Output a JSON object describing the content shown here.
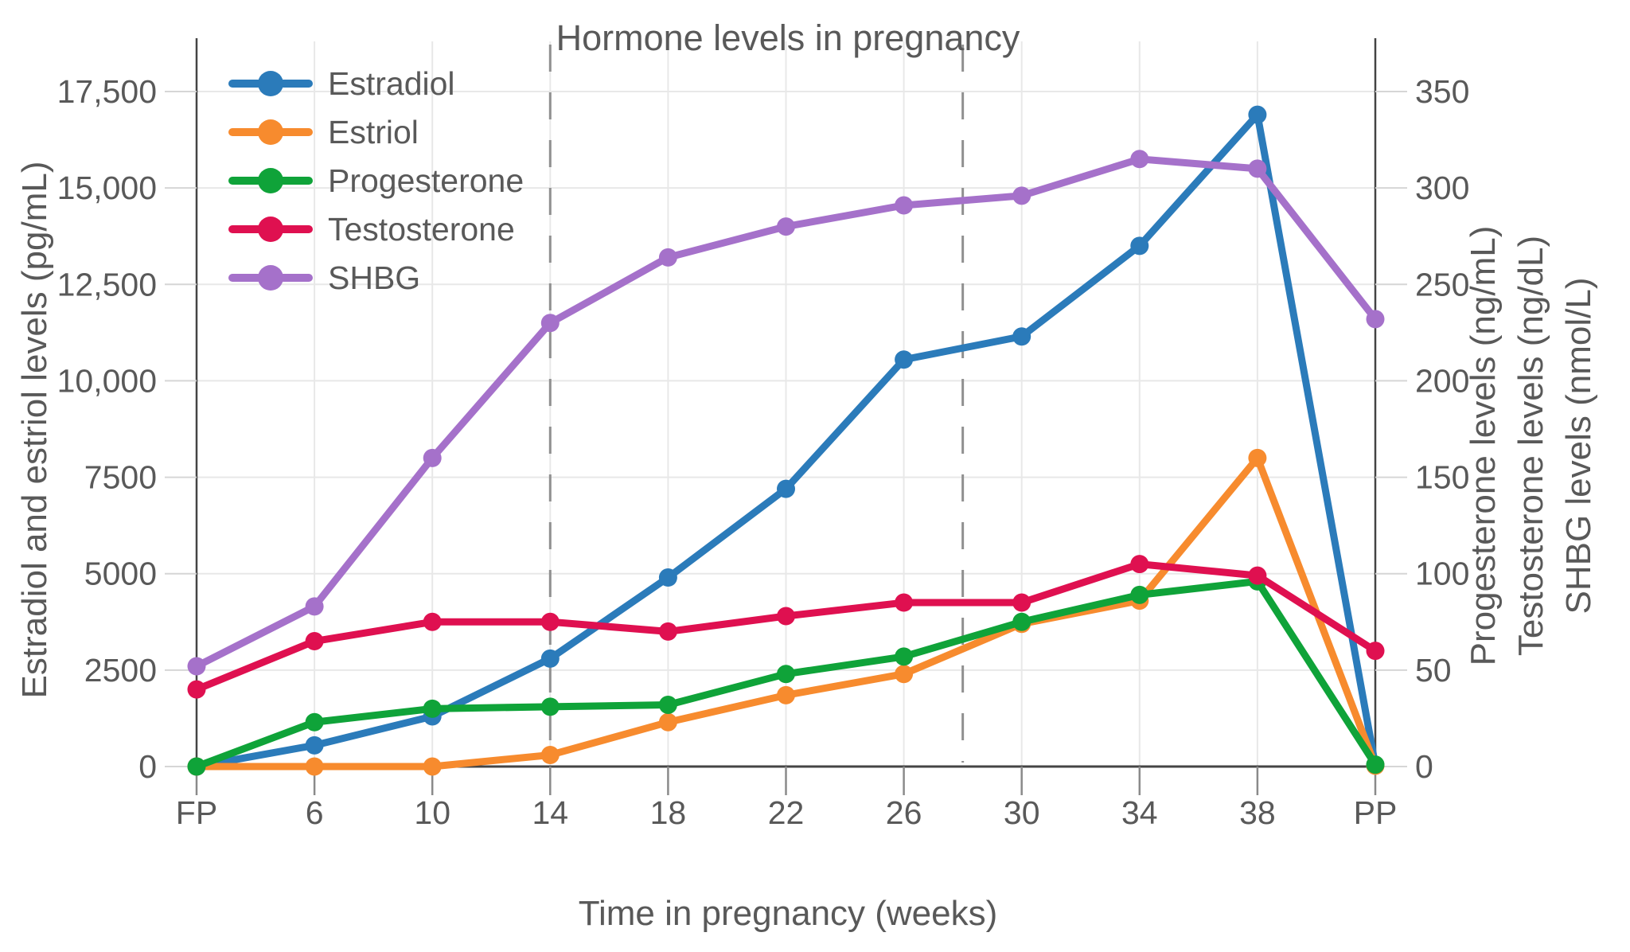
{
  "title": "Hormone levels in pregnancy",
  "x_axis": {
    "title": "Time in pregnancy (weeks)",
    "tick_labels": [
      "FP",
      "6",
      "10",
      "14",
      "18",
      "22",
      "26",
      "30",
      "34",
      "38",
      "PP"
    ]
  },
  "left_axis": {
    "title": "Estradiol and estriol levels (pg/mL)",
    "tick_labels": [
      "0",
      "2500",
      "5000",
      "7500",
      "10,000",
      "12,500",
      "15,000",
      "17,500"
    ],
    "tick_values": [
      0,
      2500,
      5000,
      7500,
      10000,
      12500,
      15000,
      17500
    ],
    "range": [
      0,
      17500
    ]
  },
  "right_axis": {
    "titles": [
      "Progesterone levels (ng/mL)",
      "Testosterone levels (ng/dL)",
      "SHBG levels (nmol/L)"
    ],
    "tick_labels": [
      "0",
      "50",
      "100",
      "150",
      "200",
      "250",
      "300",
      "350"
    ],
    "tick_values": [
      0,
      50,
      100,
      150,
      200,
      250,
      300,
      350
    ],
    "range": [
      0,
      350
    ]
  },
  "legend": {
    "items": [
      "Estradiol",
      "Estriol",
      "Progesterone",
      "Testosterone",
      "SHBG"
    ]
  },
  "colors": {
    "estradiol": "#2b7bba",
    "estriol": "#f78b2e",
    "progesterone": "#0fa339",
    "testosterone": "#df1050",
    "shbg": "#a571ca",
    "text": "#595959",
    "grid": "#e8e8e8",
    "axis_line": "#444444",
    "tick_mark": "#8a8a8a",
    "dashed_line": "#909090",
    "background": "#ffffff"
  },
  "chart_data": {
    "type": "line",
    "title": "Hormone levels in pregnancy",
    "xlabel": "Time in pregnancy (weeks)",
    "categories": [
      "FP",
      "6",
      "10",
      "14",
      "18",
      "22",
      "26",
      "30",
      "34",
      "38",
      "PP"
    ],
    "left_axis_label": "Estradiol and estriol levels (pg/mL)",
    "right_axis_labels": [
      "Progesterone levels (ng/mL)",
      "Testosterone levels (ng/dL)",
      "SHBG levels (nmol/L)"
    ],
    "left_ylim": [
      0,
      17500
    ],
    "right_ylim": [
      0,
      350
    ],
    "grid": true,
    "legend_position": "top-left-inside",
    "series": [
      {
        "name": "Estradiol",
        "axis": "left",
        "unit": "pg/mL",
        "color_key": "estradiol",
        "values": [
          0,
          550,
          1300,
          2800,
          4900,
          7200,
          10550,
          11150,
          13500,
          16900,
          30
        ]
      },
      {
        "name": "Estriol",
        "axis": "left",
        "unit": "pg/mL",
        "color_key": "estriol",
        "values": [
          0,
          0,
          0,
          300,
          1150,
          1850,
          2400,
          3700,
          4300,
          8000,
          20
        ]
      },
      {
        "name": "Progesterone",
        "axis": "right",
        "unit": "ng/mL",
        "color_key": "progesterone",
        "values": [
          0,
          23,
          30,
          31,
          32,
          48,
          57,
          75,
          89,
          96,
          1
        ]
      },
      {
        "name": "Testosterone",
        "axis": "right",
        "unit": "ng/dL",
        "color_key": "testosterone",
        "values": [
          40,
          65,
          75,
          75,
          70,
          78,
          85,
          85,
          105,
          99,
          60
        ]
      },
      {
        "name": "SHBG",
        "axis": "right",
        "unit": "nmol/L",
        "color_key": "shbg",
        "values": [
          52,
          83,
          160,
          230,
          264,
          280,
          291,
          296,
          315,
          310,
          232
        ]
      }
    ],
    "reference_lines": [
      {
        "x_index": 3,
        "label": "week 14 trimester divider",
        "style": "dashed"
      },
      {
        "x_index": 6.5,
        "label": "week 28 trimester divider",
        "style": "dashed"
      }
    ]
  }
}
